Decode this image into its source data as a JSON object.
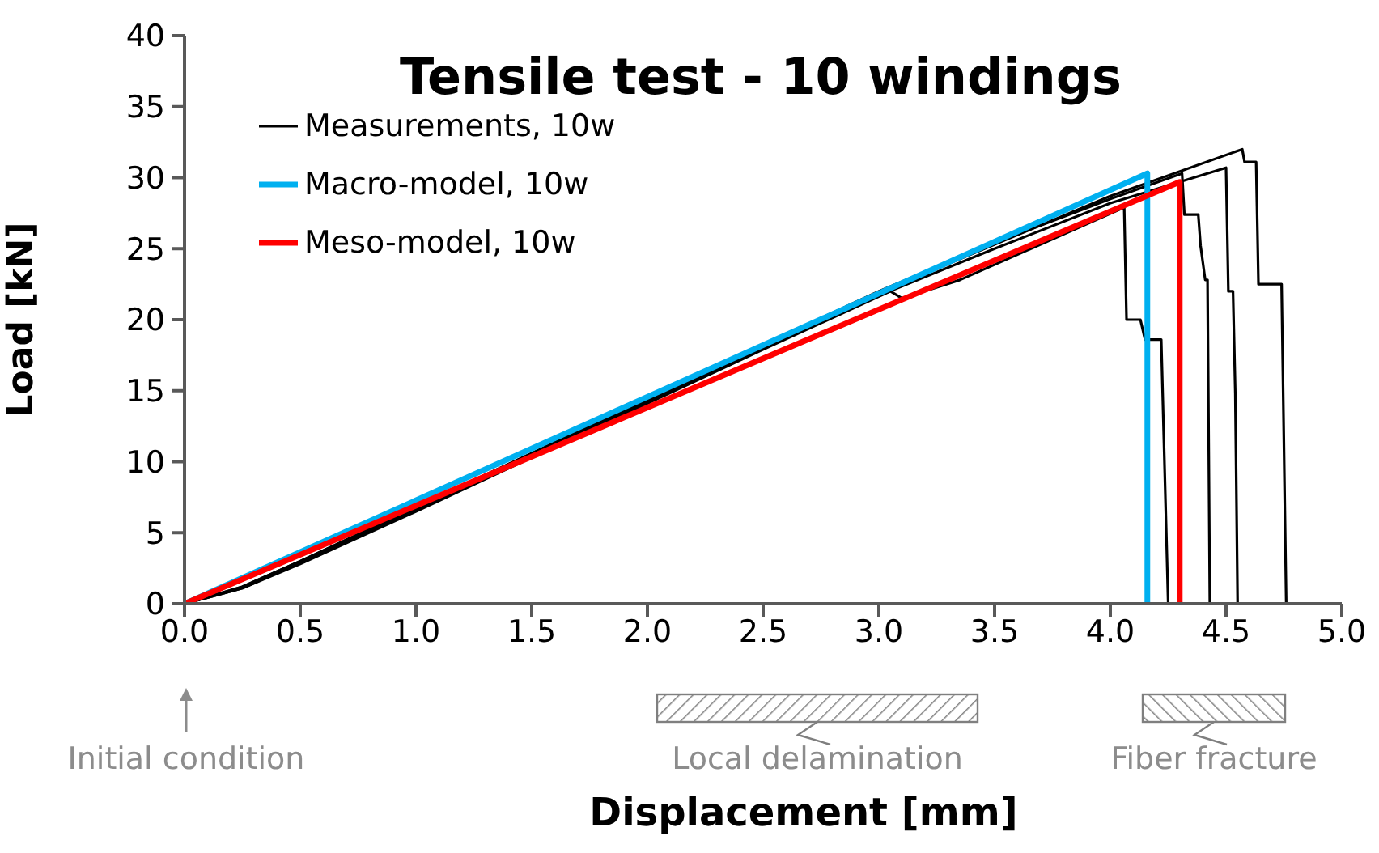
{
  "chart_data": {
    "type": "line",
    "title": "Tensile test - 10 windings",
    "xlabel": "Displacement [mm]",
    "ylabel": "Load [kN]",
    "xlim": [
      0,
      5
    ],
    "xticks": [
      {
        "value": 0,
        "label": "0.0"
      },
      {
        "value": 0.5,
        "label": "0.5"
      },
      {
        "value": 1,
        "label": "1.0"
      },
      {
        "value": 1.5,
        "label": "1.5"
      },
      {
        "value": 2,
        "label": "2.0"
      },
      {
        "value": 2.5,
        "label": "2.5"
      },
      {
        "value": 3,
        "label": "3.0"
      },
      {
        "value": 3.5,
        "label": "3.5"
      },
      {
        "value": 4,
        "label": "4.0"
      },
      {
        "value": 4.5,
        "label": "4.5"
      },
      {
        "value": 5,
        "label": "5.0"
      }
    ],
    "ylim": [
      0,
      40
    ],
    "yticks": [
      0,
      5,
      10,
      15,
      20,
      25,
      30,
      35,
      40
    ],
    "grid": false,
    "legend": "top left",
    "marker": "none",
    "line_style": "solid",
    "series": [
      {
        "name": "Measurements, 10w",
        "color": "#000000",
        "x": [
          0,
          0.25,
          0.5,
          1,
          1.5,
          2,
          2.5,
          3.05,
          3.1,
          3.35,
          4.06,
          4.07,
          4.13,
          4.15,
          4.22,
          4.25
        ],
        "values": [
          0,
          1.1,
          2.8,
          6.5,
          10.3,
          14.1,
          17.9,
          22.0,
          21.5,
          22.8,
          27.9,
          20.0,
          20.0,
          18.6,
          18.6,
          0
        ]
      },
      {
        "color": "#000000",
        "x": [
          0,
          0.25,
          0.5,
          1,
          1.5,
          2,
          2.5,
          3,
          3.5,
          4,
          4.31,
          4.32,
          4.38,
          4.39,
          4.41,
          4.42,
          4.43
        ],
        "values": [
          0,
          1.2,
          3.0,
          6.8,
          10.6,
          14.4,
          18.2,
          22.0,
          25.4,
          28.5,
          30.3,
          27.4,
          27.4,
          25.2,
          22.8,
          22.8,
          0
        ]
      },
      {
        "color": "#000000",
        "x": [
          0,
          0.25,
          0.5,
          1,
          1.5,
          2,
          2.5,
          3,
          3.5,
          4,
          4.5,
          4.51,
          4.53,
          4.54,
          4.55
        ],
        "values": [
          0,
          1.1,
          2.9,
          6.6,
          10.4,
          14.2,
          18.0,
          21.7,
          25.0,
          28.2,
          30.7,
          22.0,
          22.0,
          14.8,
          0
        ]
      },
      {
        "color": "#000000",
        "x": [
          0,
          0.25,
          0.5,
          1,
          1.5,
          2,
          2.5,
          3,
          3.5,
          4,
          4.57,
          4.58,
          4.63,
          4.64,
          4.74,
          4.76
        ],
        "values": [
          0,
          1.2,
          3.0,
          6.7,
          10.5,
          14.3,
          18.1,
          21.9,
          25.3,
          28.7,
          32.0,
          31.1,
          31.1,
          22.5,
          22.5,
          0
        ]
      },
      {
        "name": "Macro-model, 10w",
        "color": "#00b0f0",
        "x": [
          0,
          4.16,
          4.16
        ],
        "values": [
          0,
          30.3,
          0
        ]
      },
      {
        "name": "Meso-model, 10w",
        "color": "#ff0000",
        "x": [
          0,
          4.3,
          4.3
        ],
        "values": [
          0,
          29.7,
          0
        ]
      }
    ],
    "annotations": [
      "Initial condition",
      "Local delamination",
      "Fiber fracture"
    ]
  }
}
